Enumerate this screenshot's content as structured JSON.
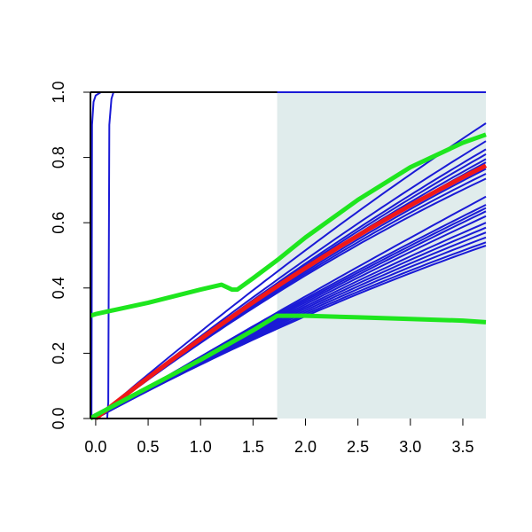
{
  "chart_data": {
    "type": "line",
    "title": "",
    "xlabel": "",
    "ylabel": "",
    "xlim": [
      -0.05,
      3.72
    ],
    "ylim": [
      0.0,
      1.0
    ],
    "x_ticks": [
      0.0,
      0.5,
      1.0,
      1.5,
      2.0,
      2.5,
      3.0,
      3.5
    ],
    "x_tick_labels": [
      "0.0",
      "0.5",
      "1.0",
      "1.5",
      "2.0",
      "2.5",
      "3.0",
      "3.5"
    ],
    "y_ticks": [
      0.0,
      0.2,
      0.4,
      0.6,
      0.8,
      1.0
    ],
    "y_tick_labels": [
      "0.0",
      "0.2",
      "0.4",
      "0.6",
      "0.8",
      "1.0"
    ],
    "shaded_region": {
      "x_start": 1.73,
      "x_end": 3.72,
      "color": "#e0ecec"
    },
    "colors": {
      "blue": "#1a1ad6",
      "red": "#f01818",
      "green": "#1ee61e",
      "axis": "#000000"
    },
    "blue_curves": [
      {
        "kind": "step",
        "x": [
          -0.05,
          -0.04,
          -0.035,
          -0.02,
          0.0,
          0.05,
          3.72
        ],
        "y": [
          0.0,
          0.0,
          0.9,
          0.97,
          0.99,
          1.0,
          1.0
        ]
      },
      {
        "kind": "step",
        "x": [
          0.11,
          0.12,
          0.13,
          0.15,
          0.17,
          3.72
        ],
        "y": [
          0.0,
          0.05,
          0.9,
          0.98,
          1.0,
          1.0
        ]
      },
      {
        "kind": "smooth",
        "end": 0.905,
        "mid": 0.45
      },
      {
        "kind": "smooth",
        "end": 0.85,
        "mid": 0.425
      },
      {
        "kind": "smooth",
        "end": 0.825,
        "mid": 0.415
      },
      {
        "kind": "smooth",
        "end": 0.81,
        "mid": 0.41
      },
      {
        "kind": "smooth",
        "end": 0.795,
        "mid": 0.405
      },
      {
        "kind": "smooth",
        "end": 0.785,
        "mid": 0.4
      },
      {
        "kind": "smooth",
        "end": 0.765,
        "mid": 0.395
      },
      {
        "kind": "smooth",
        "end": 0.75,
        "mid": 0.39
      },
      {
        "kind": "smooth",
        "end": 0.735,
        "mid": 0.385
      },
      {
        "kind": "smooth",
        "end": 0.68,
        "mid": 0.325
      },
      {
        "kind": "smooth",
        "end": 0.655,
        "mid": 0.32
      },
      {
        "kind": "smooth",
        "end": 0.645,
        "mid": 0.315
      },
      {
        "kind": "smooth",
        "end": 0.635,
        "mid": 0.31
      },
      {
        "kind": "smooth",
        "end": 0.62,
        "mid": 0.305
      },
      {
        "kind": "smooth",
        "end": 0.6,
        "mid": 0.3
      },
      {
        "kind": "smooth",
        "end": 0.585,
        "mid": 0.295
      },
      {
        "kind": "smooth",
        "end": 0.57,
        "mid": 0.29
      },
      {
        "kind": "smooth",
        "end": 0.555,
        "mid": 0.285
      },
      {
        "kind": "smooth",
        "end": 0.54,
        "mid": 0.28
      },
      {
        "kind": "smooth",
        "end": 0.53,
        "mid": 0.275
      }
    ],
    "red_curve": {
      "end": 0.775,
      "mid": 0.405
    },
    "green_curves": [
      {
        "x": [
          -0.05,
          0.0,
          0.5,
          1.0,
          1.2,
          1.3,
          1.35,
          1.5,
          1.75,
          2.0,
          2.5,
          3.0,
          3.5,
          3.72
        ],
        "y": [
          0.315,
          0.32,
          0.355,
          0.395,
          0.41,
          0.395,
          0.395,
          0.43,
          0.49,
          0.555,
          0.67,
          0.77,
          0.845,
          0.87
        ]
      },
      {
        "x": [
          -0.05,
          0.0,
          0.5,
          1.0,
          1.5,
          1.73,
          2.0,
          2.5,
          3.0,
          3.5,
          3.72
        ],
        "y": [
          0.0,
          0.01,
          0.095,
          0.18,
          0.27,
          0.315,
          0.315,
          0.31,
          0.305,
          0.3,
          0.295
        ]
      }
    ]
  }
}
